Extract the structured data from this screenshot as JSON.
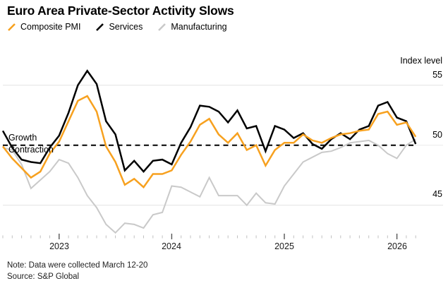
{
  "header": {
    "title": "Euro Area Private-Sector Activity Slows"
  },
  "legend": [
    {
      "label": "Composite PMI",
      "color": "#F7A11F"
    },
    {
      "label": "Services",
      "color": "#000000"
    },
    {
      "label": "Manufacturing",
      "color": "#C9C9C9"
    }
  ],
  "chart_data": {
    "type": "line",
    "title": "Euro Area Private-Sector Activity Slows",
    "x": [
      "2022-07",
      "2022-08",
      "2022-09",
      "2022-10",
      "2022-11",
      "2022-12",
      "2023-01",
      "2023-02",
      "2023-03",
      "2023-04",
      "2023-05",
      "2023-06",
      "2023-07",
      "2023-08",
      "2023-09",
      "2023-10",
      "2023-11",
      "2023-12",
      "2024-01",
      "2024-02",
      "2024-03",
      "2024-04",
      "2024-05",
      "2024-06",
      "2024-07",
      "2024-08",
      "2024-09",
      "2024-10",
      "2024-11",
      "2024-12",
      "2025-01",
      "2025-02",
      "2025-03",
      "2025-04",
      "2025-05",
      "2025-06",
      "2025-07",
      "2025-08",
      "2025-09",
      "2025-10",
      "2025-11",
      "2025-12",
      "2026-01",
      "2026-02",
      "2026-03"
    ],
    "series": [
      {
        "name": "Composite PMI",
        "color": "#F7A11F",
        "values": [
          49.9,
          48.9,
          48.1,
          47.3,
          47.8,
          49.3,
          50.3,
          52.0,
          53.7,
          54.1,
          52.8,
          49.9,
          48.6,
          46.7,
          47.2,
          46.5,
          47.6,
          47.6,
          47.9,
          49.2,
          50.3,
          51.7,
          52.2,
          50.9,
          50.2,
          51.0,
          49.6,
          50.0,
          48.3,
          49.6,
          50.2,
          50.2,
          50.9,
          50.4,
          50.2,
          50.6,
          50.9,
          51.0,
          51.2,
          51.3,
          52.6,
          52.8,
          51.7,
          51.9,
          50.7
        ]
      },
      {
        "name": "Services",
        "color": "#000000",
        "values": [
          51.2,
          49.8,
          48.8,
          48.6,
          48.5,
          49.8,
          50.8,
          52.7,
          55.0,
          56.2,
          55.1,
          52.0,
          50.9,
          47.9,
          48.7,
          47.8,
          48.7,
          48.8,
          48.4,
          50.2,
          51.5,
          53.3,
          53.2,
          52.8,
          51.9,
          52.9,
          51.4,
          51.6,
          49.5,
          51.6,
          51.3,
          50.6,
          51.0,
          50.1,
          49.7,
          50.5,
          51.0,
          50.5,
          51.3,
          51.6,
          53.3,
          53.6,
          52.3,
          52.0,
          50.1
        ]
      },
      {
        "name": "Manufacturing",
        "color": "#C9C9C9",
        "values": [
          49.8,
          49.6,
          48.4,
          46.4,
          47.1,
          47.8,
          48.8,
          48.5,
          47.3,
          45.8,
          44.8,
          43.4,
          42.7,
          43.5,
          43.4,
          43.1,
          44.2,
          44.4,
          46.6,
          46.5,
          46.1,
          45.7,
          47.3,
          45.8,
          45.8,
          45.8,
          45.0,
          46.0,
          45.2,
          45.1,
          46.6,
          47.6,
          48.6,
          49.0,
          49.4,
          49.5,
          49.8,
          50.2,
          50.3,
          50.4,
          50.0,
          49.3,
          48.9,
          50.0,
          50.5
        ]
      }
    ],
    "y_axis": {
      "label": "Index level",
      "ticks": [
        55,
        50,
        45
      ],
      "range": [
        42,
        57
      ]
    },
    "x_axis": {
      "year_labels": [
        "2023",
        "2024",
        "2025",
        "2026"
      ]
    },
    "reference_line": {
      "value": 50,
      "style": "dashed",
      "above_label": "Growth",
      "below_label": "Contraction"
    },
    "grid": true,
    "legend_position": "top"
  },
  "footer": {
    "note": "Note: Data were collected March 12-20",
    "source": "Source: S&P Global"
  }
}
